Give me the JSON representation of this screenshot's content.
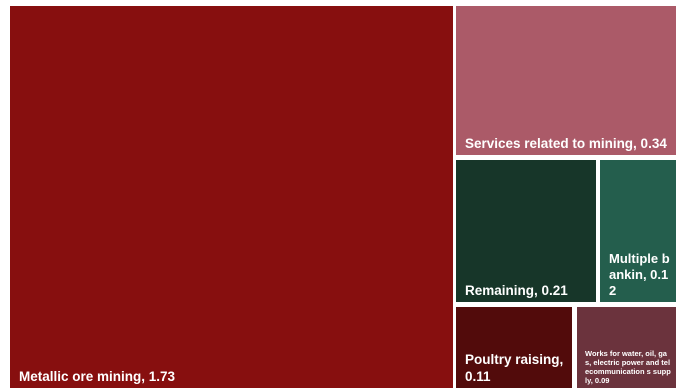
{
  "chart_data": {
    "type": "treemap",
    "items": [
      {
        "name": "Metallic ore mining",
        "value": 1.73,
        "label": "Metallic ore mining,  1.73",
        "color": "#870f0f"
      },
      {
        "name": "Services related to mining",
        "value": 0.34,
        "label": "Services related to mining, 0.34",
        "color": "#ab5a68"
      },
      {
        "name": "Remaining",
        "value": 0.21,
        "label": "Remaining,  0.21",
        "color": "#173629"
      },
      {
        "name": "Multiple bankin",
        "value": 0.12,
        "label": "Multiple bankin, 0.12",
        "color": "#245e4d"
      },
      {
        "name": "Poultry raising",
        "value": 0.11,
        "label": "Poultry raising,  0.11",
        "color": "#520b0b"
      },
      {
        "name": "Works for water, oil, gas, electric power and telecommunications supply",
        "value": 0.09,
        "label": "Works for water, oil, gas, electric power and telecommunication s supply,  0.09",
        "color": "#6b333d"
      }
    ]
  }
}
